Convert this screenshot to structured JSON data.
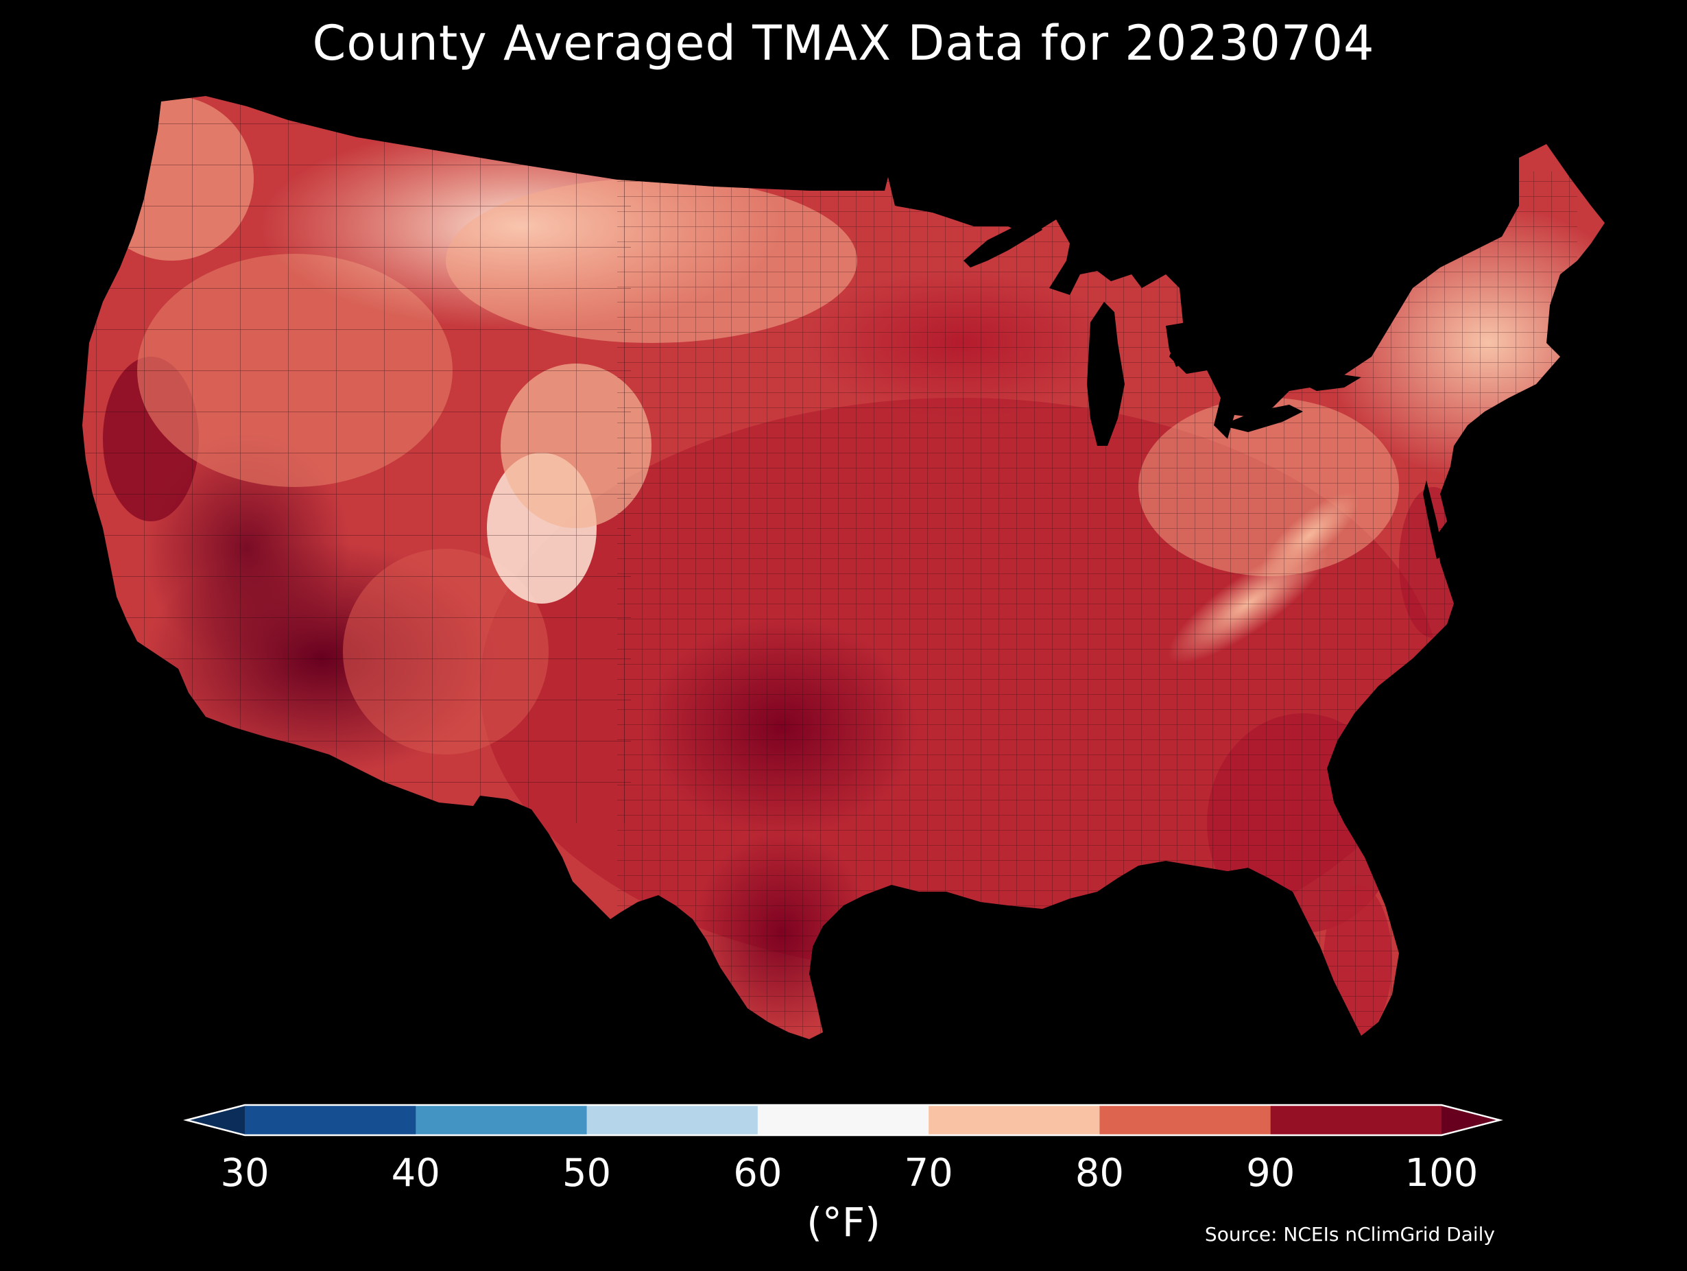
{
  "title": "County Averaged TMAX Data for 20230704",
  "colorbar": {
    "unit_label": "(°F)",
    "ticks": [
      "30",
      "40",
      "50",
      "60",
      "70",
      "80",
      "90",
      "100"
    ],
    "bins": [
      {
        "from": 30,
        "to": 40,
        "color": "#154f91"
      },
      {
        "from": 40,
        "to": 50,
        "color": "#4393c3"
      },
      {
        "from": 50,
        "to": 60,
        "color": "#b5d6ea"
      },
      {
        "from": 60,
        "to": 70,
        "color": "#f7f7f7"
      },
      {
        "from": 70,
        "to": 80,
        "color": "#f9c2a5"
      },
      {
        "from": 80,
        "to": 90,
        "color": "#dd6550"
      },
      {
        "from": 90,
        "to": 100,
        "color": "#950f25"
      }
    ],
    "under_color": "#0b2d5a",
    "over_color": "#67001f"
  },
  "source": "Source: NCEIs nClimGrid Daily",
  "map": {
    "region": "Contiguous United States",
    "fill_colors": {
      "ocean": "#000000",
      "boundary_lines": "#3a0a10"
    }
  }
}
